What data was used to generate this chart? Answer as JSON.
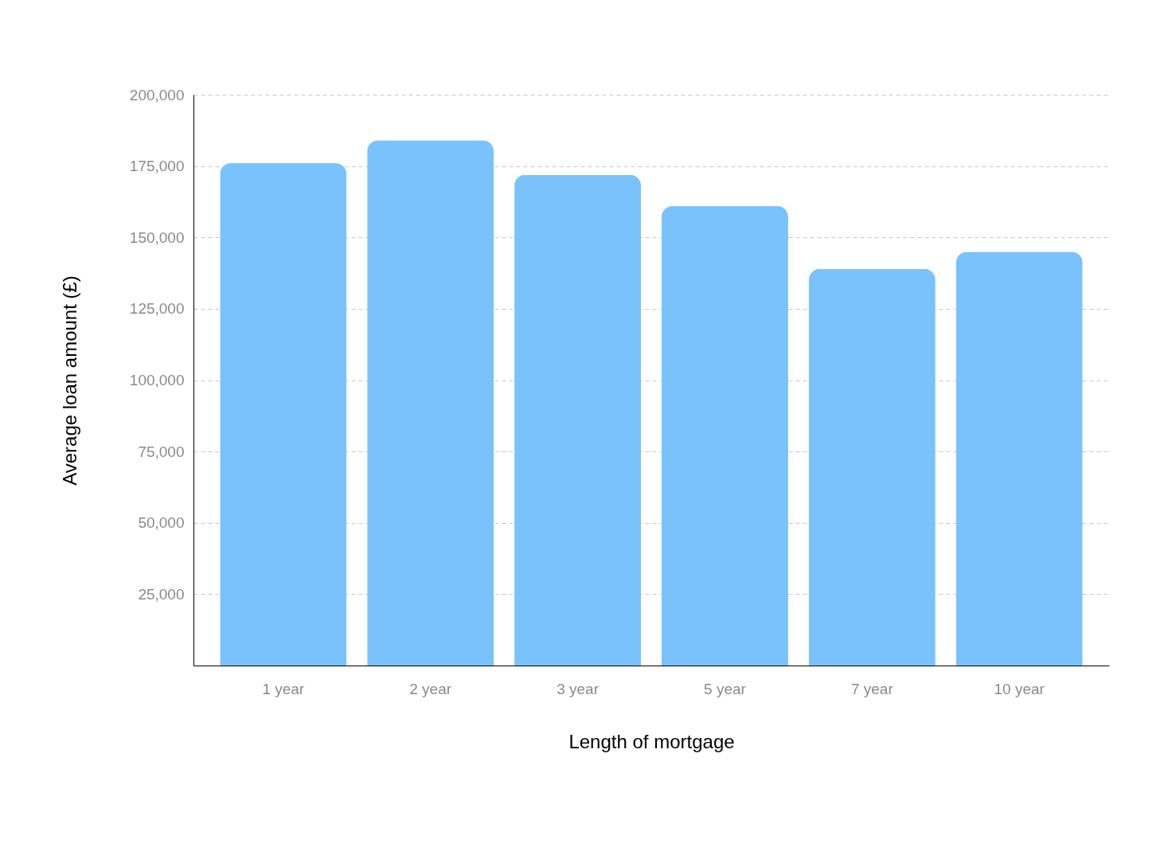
{
  "chart_data": {
    "type": "bar",
    "xlabel": "Length of mortgage",
    "ylabel": "Average loan amount (£)",
    "categories": [
      "1 year",
      "2 year",
      "3 year",
      "5 year",
      "7 year",
      "10 year"
    ],
    "values": [
      176000,
      184000,
      172000,
      161000,
      139000,
      145000
    ],
    "color": "#79c2fc",
    "ylim": [
      0,
      200000
    ],
    "yticks": [
      {
        "value": 25000,
        "label": "25,000"
      },
      {
        "value": 50000,
        "label": "50,000"
      },
      {
        "value": 75000,
        "label": "75,000"
      },
      {
        "value": 100000,
        "label": "100,000"
      },
      {
        "value": 125000,
        "label": "125,000"
      },
      {
        "value": 150000,
        "label": "150,000"
      },
      {
        "value": 175000,
        "label": "175,000"
      },
      {
        "value": 200000,
        "label": "200,000"
      }
    ],
    "grid": "y"
  }
}
